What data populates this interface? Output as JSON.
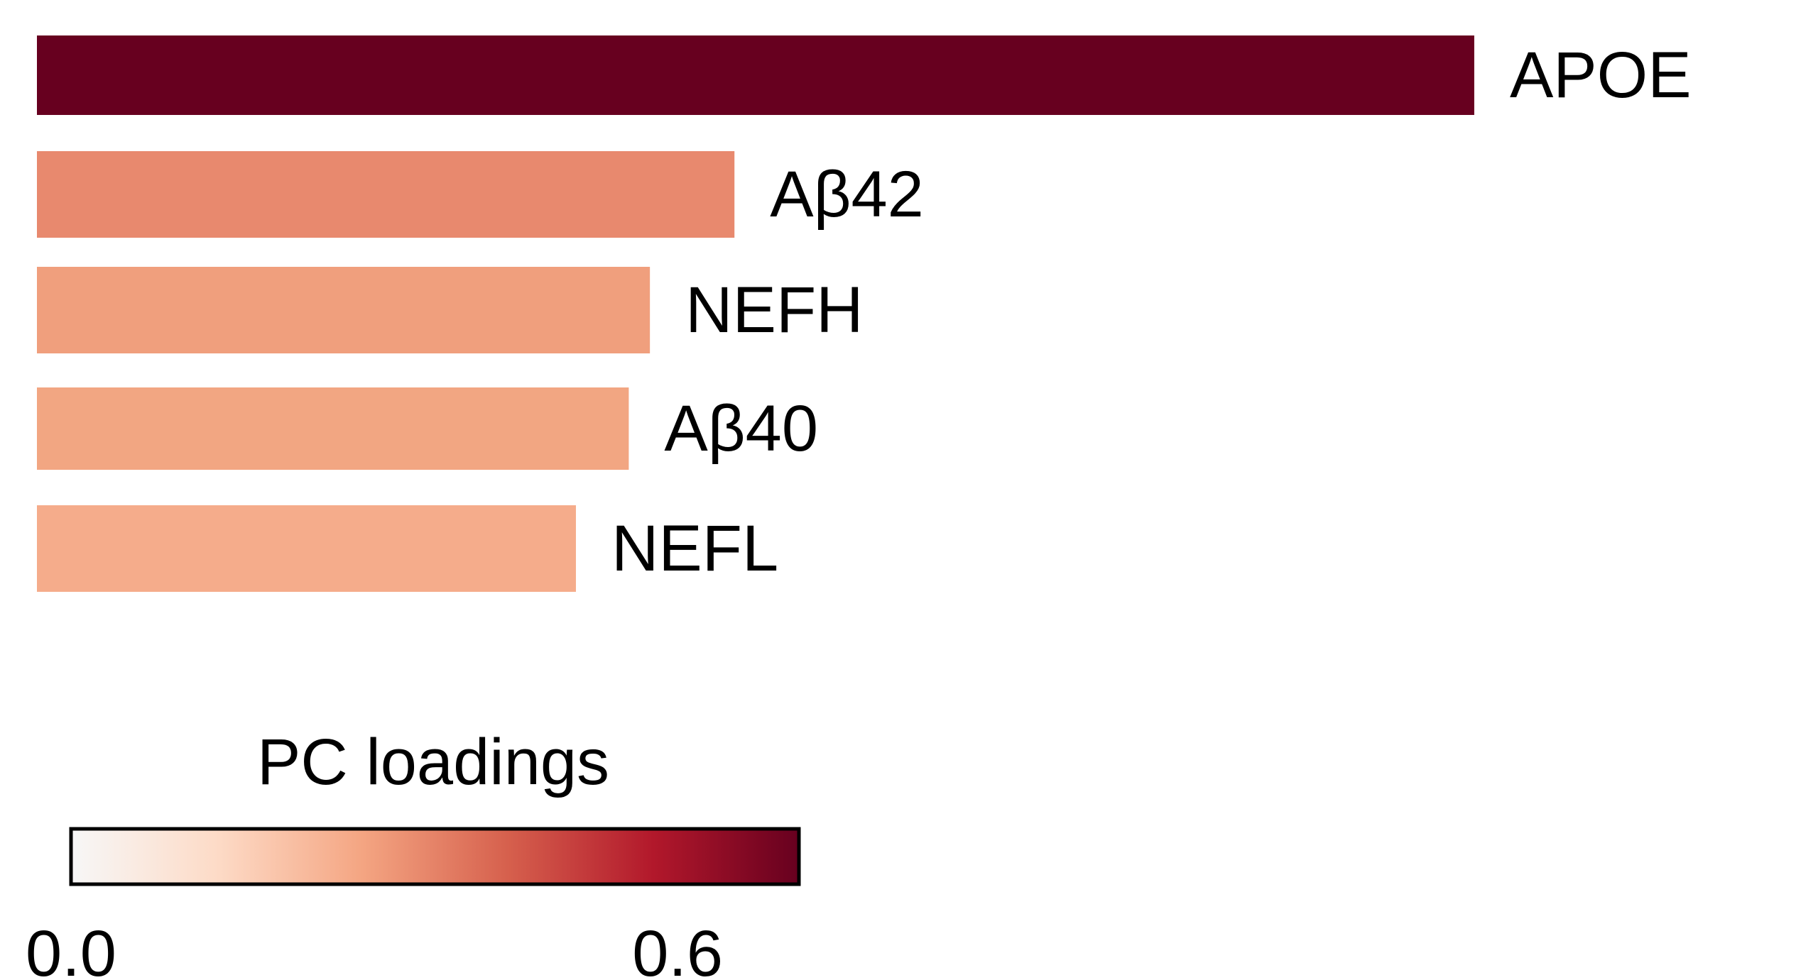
{
  "chart_data": {
    "type": "bar",
    "orientation": "horizontal",
    "categories": [
      "APOE",
      "Aβ42",
      "NEFH",
      "Aβ40",
      "NEFL"
    ],
    "values": [
      0.68,
      0.33,
      0.29,
      0.28,
      0.255
    ],
    "xlim": [
      0,
      0.72
    ],
    "grid": false,
    "colors": [
      "#67001f",
      "#e8896e",
      "#f09f7d",
      "#f2a682",
      "#f5ac8b"
    ],
    "legend": {
      "title": "PC loadings",
      "placement": "bottom-left",
      "range": [
        0.0,
        0.72
      ],
      "ticks": [
        {
          "value": 0.0,
          "label": "0.0"
        },
        {
          "value": 0.6,
          "label": "0.6"
        }
      ],
      "colormap": [
        "#f7f7f7",
        "#fddbc7",
        "#f4a582",
        "#d6604d",
        "#b2182b",
        "#67001f"
      ]
    }
  }
}
